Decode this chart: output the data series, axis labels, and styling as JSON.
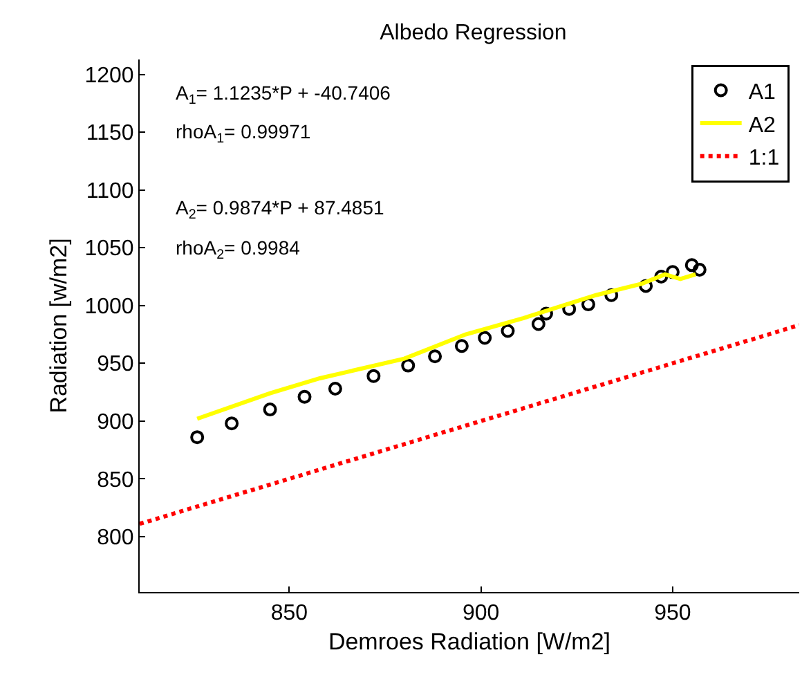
{
  "chart_data": {
    "type": "scatter",
    "title": "Albedo Regression",
    "xlabel": "Demroes Radiation [W/m2]",
    "ylabel": "Radiation [w/m2]",
    "annotations": [
      "A$_{1}$= 1.1235*P + -40.7406",
      "rhoA$_{1}$= 0.99971",
      "A$_{2}$= 0.9874*P + 87.4851",
      "rhoA$_{2}$= 0.9984"
    ],
    "series": [
      {
        "name": "A1",
        "type": "scatter",
        "marker": "circle",
        "color": "#000000",
        "x": [
          826,
          835,
          845,
          854,
          862,
          872,
          881,
          888,
          895,
          901,
          907,
          915,
          917,
          923,
          928,
          934,
          943,
          947,
          950,
          955,
          957
        ],
        "values": [
          886,
          898,
          910,
          921,
          928,
          939,
          948,
          956,
          965,
          972,
          978,
          984,
          993,
          997,
          1001,
          1009,
          1017,
          1025,
          1029,
          1035,
          1031
        ]
      },
      {
        "name": "A2",
        "type": "line",
        "line_style": "solid",
        "color": "#ffff00",
        "x": [
          826,
          845,
          858,
          880,
          896,
          911,
          930,
          942,
          948,
          952,
          956
        ],
        "values": [
          902,
          924,
          937,
          954,
          975,
          989,
          1009,
          1019,
          1027,
          1023,
          1027
        ]
      },
      {
        "name": "1:1",
        "type": "line",
        "line_style": "dotted",
        "color": "#ff0000",
        "x": [
          811,
          983
        ],
        "values": [
          811,
          983
        ]
      }
    ],
    "xlim": [
      811,
      983
    ],
    "ylim": [
      752,
      1213
    ],
    "xticks": [
      850,
      900,
      950
    ],
    "yticks": [
      800,
      850,
      900,
      950,
      1000,
      1050,
      1100,
      1150,
      1200
    ],
    "grid": false,
    "legend": "top right"
  }
}
